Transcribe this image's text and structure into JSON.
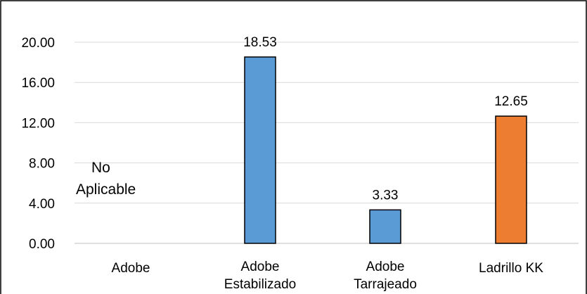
{
  "chart_data": {
    "type": "bar",
    "categories": [
      [
        "Adobe"
      ],
      [
        "Adobe",
        "Estabilizado"
      ],
      [
        "Adobe",
        "Tarrajeado"
      ],
      [
        "Ladrillo KK"
      ]
    ],
    "values": [
      null,
      18.53,
      3.33,
      12.65
    ],
    "data_labels": [
      "",
      "18.53",
      "3.33",
      "12.65"
    ],
    "bar_colors": [
      "#5b9bd5",
      "#5b9bd5",
      "#5b9bd5",
      "#ed7d31"
    ],
    "no_data_note": [
      "No",
      "Aplicable"
    ],
    "yticks": [
      "0.00",
      "4.00",
      "8.00",
      "12.00",
      "16.00",
      "20.00"
    ],
    "ylim": [
      0,
      22.8
    ],
    "grid": true,
    "title": "",
    "xlabel": "",
    "ylabel": ""
  }
}
